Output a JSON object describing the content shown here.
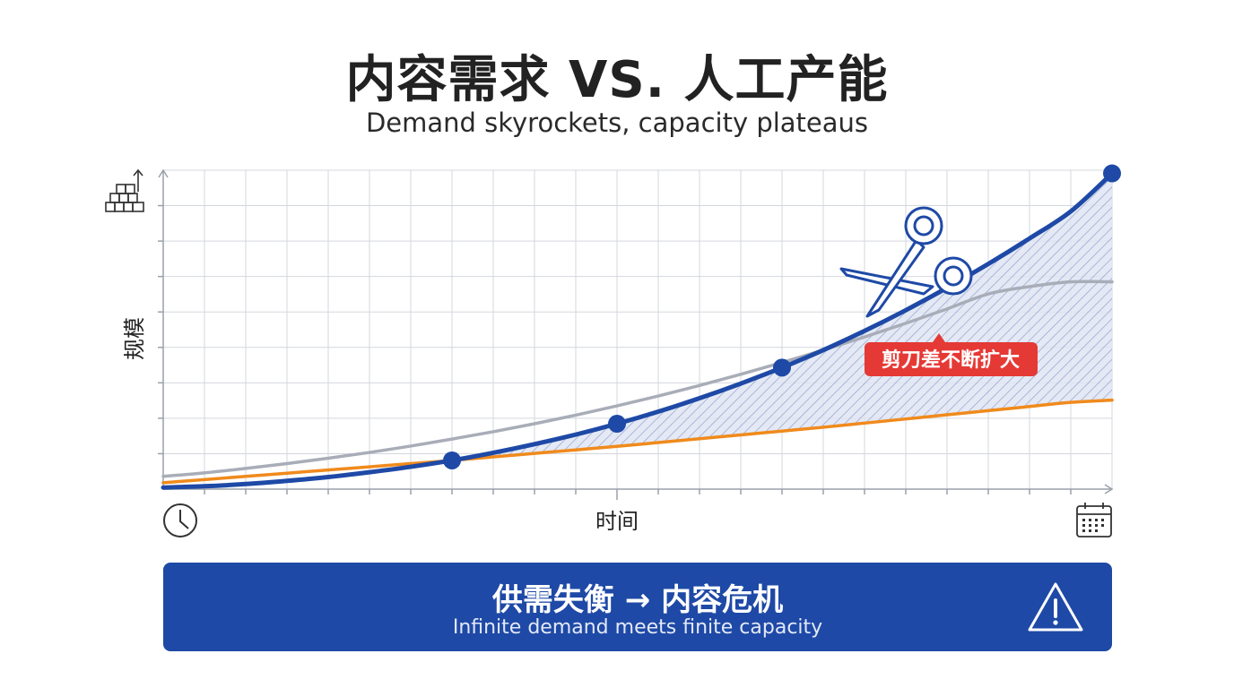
{
  "title": "内容需求 VS. 人工产能",
  "subtitle": "Demand skyrockets, capacity plateaus",
  "chart_data": {
    "type": "line",
    "xlabel": "时间",
    "ylabel": "规模",
    "x": [
      0,
      1,
      2,
      3,
      4,
      5,
      6,
      7,
      8,
      9,
      10,
      11,
      12,
      13,
      14,
      15,
      16,
      17,
      18,
      19,
      20,
      21,
      22,
      23
    ],
    "ylim": [
      0,
      100
    ],
    "grid": true,
    "series": [
      {
        "color": "#1e49a6",
        "values": [
          0.5,
          0.9,
          1.6,
          2.6,
          3.8,
          5.3,
          7.0,
          9.0,
          11.4,
          14.1,
          17.1,
          20.5,
          24.3,
          28.5,
          33.1,
          38.1,
          43.6,
          49.6,
          56.1,
          63.1,
          70.6,
          78.6,
          87.1,
          99.0
        ]
      },
      {
        "color": "#f08a1c",
        "values": [
          2.0,
          3.0,
          4.0,
          5.0,
          6.0,
          7.0,
          8.0,
          9.0,
          10.1,
          11.2,
          12.3,
          13.4,
          14.6,
          15.8,
          17.0,
          18.2,
          19.4,
          20.7,
          22.0,
          23.3,
          24.6,
          25.9,
          27.2,
          27.9
        ]
      },
      {
        "color": "#a8adb8",
        "values": [
          4.0,
          5.1,
          6.5,
          8.0,
          9.7,
          11.5,
          13.5,
          15.7,
          18.0,
          20.5,
          23.2,
          26.1,
          29.2,
          32.5,
          36.0,
          39.7,
          43.6,
          47.7,
          52.0,
          56.5,
          61.2,
          63.5,
          65.0,
          65.0
        ]
      }
    ],
    "markers_series": 0,
    "markers_x": [
      7,
      11,
      15,
      23
    ],
    "shaded_gap_from_x": 7,
    "annotations": [
      {
        "text": "剪刀差不断扩大",
        "color": "#e53935"
      }
    ]
  },
  "icons": {
    "y_axis": "stacked-bars-growth-icon",
    "clock": "clock-icon",
    "calendar": "calendar-icon",
    "scissors": "scissors-icon",
    "warning": "warning-icon"
  },
  "banner": {
    "title": "供需失衡 → 内容危机",
    "subtitle": "Infinite demand meets finite capacity",
    "color": "#1e49a6"
  }
}
